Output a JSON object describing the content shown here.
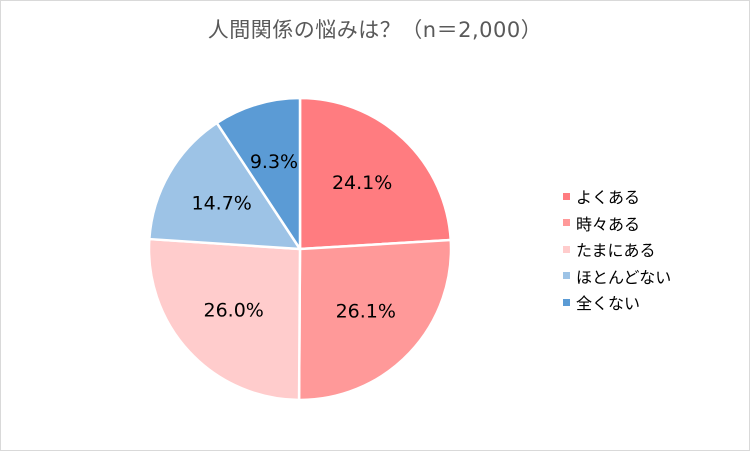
{
  "chart_data": {
    "type": "pie",
    "title": "人間関係の悩みは？（n＝2,000）",
    "categories": [
      "よくある",
      "時々ある",
      "たまにある",
      "ほとんどない",
      "全くない"
    ],
    "values": [
      24.1,
      26.1,
      26.0,
      14.7,
      9.3
    ],
    "labels": [
      "24.1%",
      "26.1%",
      "26.0%",
      "14.7%",
      "9.3%"
    ],
    "colors": [
      "#ff7c80",
      "#ff9999",
      "#ffcccc",
      "#9dc3e6",
      "#5b9bd5"
    ],
    "legend_position": "right"
  }
}
